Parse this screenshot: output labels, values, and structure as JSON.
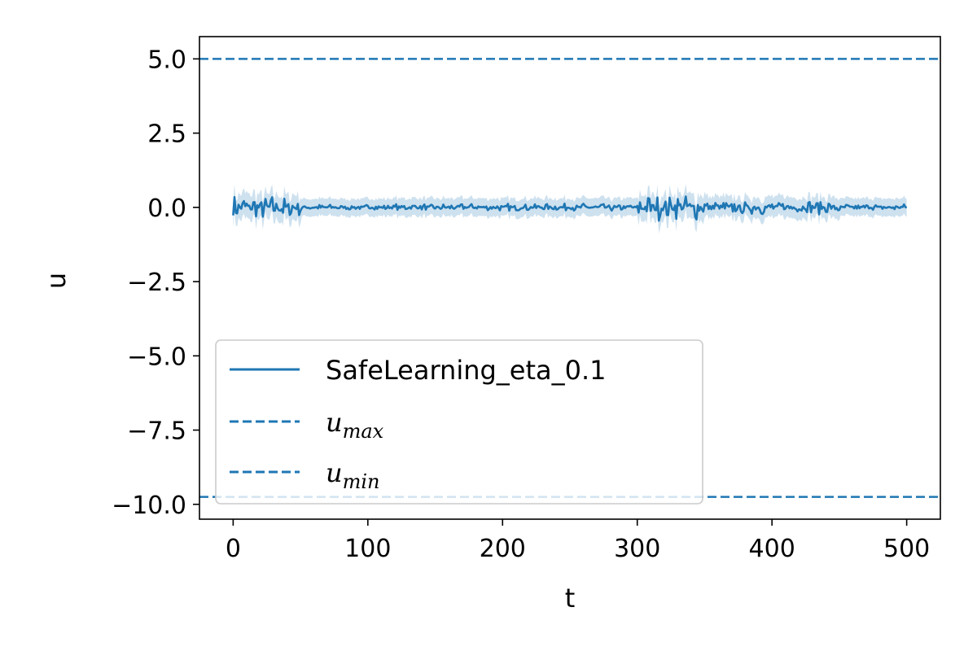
{
  "chart_data": {
    "type": "line",
    "xlabel": "t",
    "ylabel": "u",
    "xlim": [
      -25,
      525
    ],
    "ylim": [
      -10.5,
      5.75
    ],
    "x_ticks": [
      0,
      100,
      200,
      300,
      400,
      500
    ],
    "y_ticks": [
      5.0,
      2.5,
      0.0,
      -2.5,
      -5.0,
      -7.5,
      -10.0
    ],
    "x_tick_labels": [
      "0",
      "100",
      "200",
      "300",
      "400",
      "500"
    ],
    "y_tick_labels": [
      "5.0",
      "2.5",
      "0.0",
      "−2.5",
      "−5.0",
      "−7.5",
      "−10.0"
    ],
    "grid": false,
    "legend_position": "lower-left",
    "colors": {
      "series": "#1f77b4",
      "band": "#1f77b4"
    },
    "series": [
      {
        "name": "SafeLearning_eta_0.1",
        "style": "solid",
        "x_range": [
          0,
          500
        ],
        "mean_level": 0.0,
        "amplitude_segments": [
          {
            "t": [
              0,
              50
            ],
            "amp": 0.45
          },
          {
            "t": [
              50,
              120
            ],
            "amp": 0.1
          },
          {
            "t": [
              120,
              300
            ],
            "amp": 0.13
          },
          {
            "t": [
              300,
              350
            ],
            "amp": 0.45
          },
          {
            "t": [
              350,
              450
            ],
            "amp": 0.25
          },
          {
            "t": [
              450,
              500
            ],
            "amp": 0.12
          }
        ],
        "band_width": 0.25
      },
      {
        "name_main": "u",
        "name_sub": "max",
        "style": "dashed",
        "y": 5.0
      },
      {
        "name_main": "u",
        "name_sub": "min",
        "style": "dashed",
        "y": -9.75
      }
    ]
  }
}
